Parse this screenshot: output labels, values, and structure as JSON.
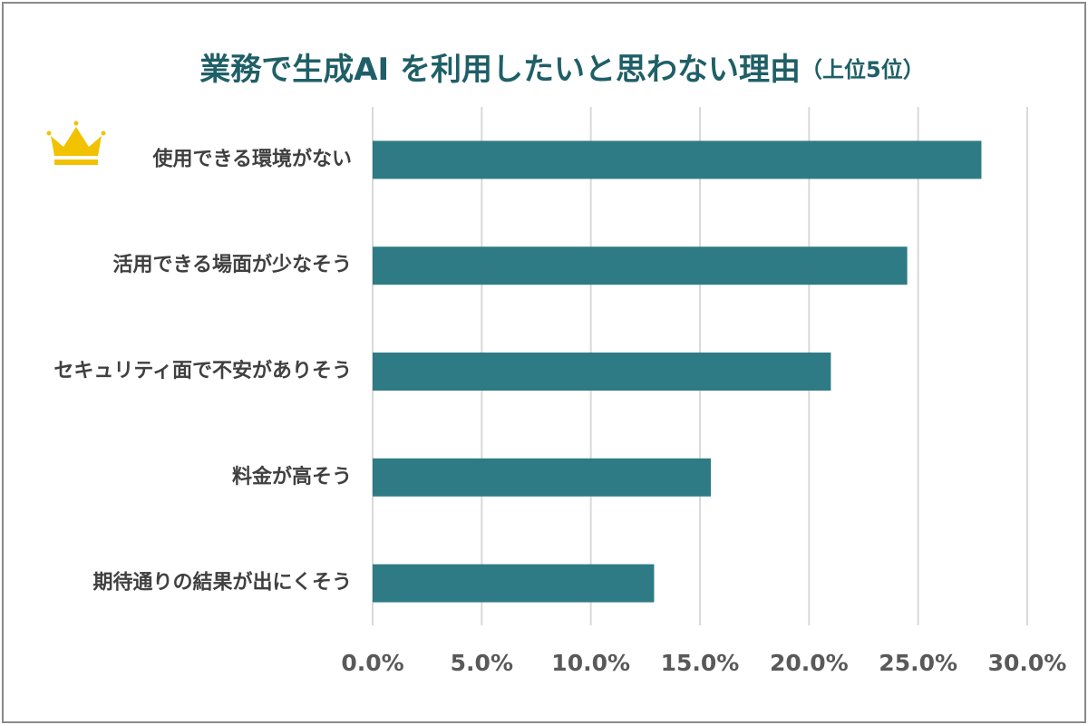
{
  "chart_data": {
    "type": "bar",
    "orientation": "horizontal",
    "title": "業務で生成AI を利用したいと思わない理由",
    "subtitle": "（上位5位）",
    "categories": [
      "使用できる環境がない",
      "活用できる場面が少なそう",
      "セキュリティ面で不安がありそう",
      "料金が高そう",
      "期待通りの結果が出にくそう"
    ],
    "values": [
      27.9,
      24.5,
      21.0,
      15.5,
      12.9
    ],
    "color": "#2e7b85",
    "xlim": [
      0,
      30
    ],
    "xticks": [
      {
        "value": 0,
        "label": "0.0%"
      },
      {
        "value": 5,
        "label": "5.0%"
      },
      {
        "value": 10,
        "label": "10.0%"
      },
      {
        "value": 15,
        "label": "15.0%"
      },
      {
        "value": 20,
        "label": "20.0%"
      },
      {
        "value": 25,
        "label": "25.0%"
      },
      {
        "value": 30,
        "label": "30.0%"
      }
    ],
    "grid": true
  }
}
